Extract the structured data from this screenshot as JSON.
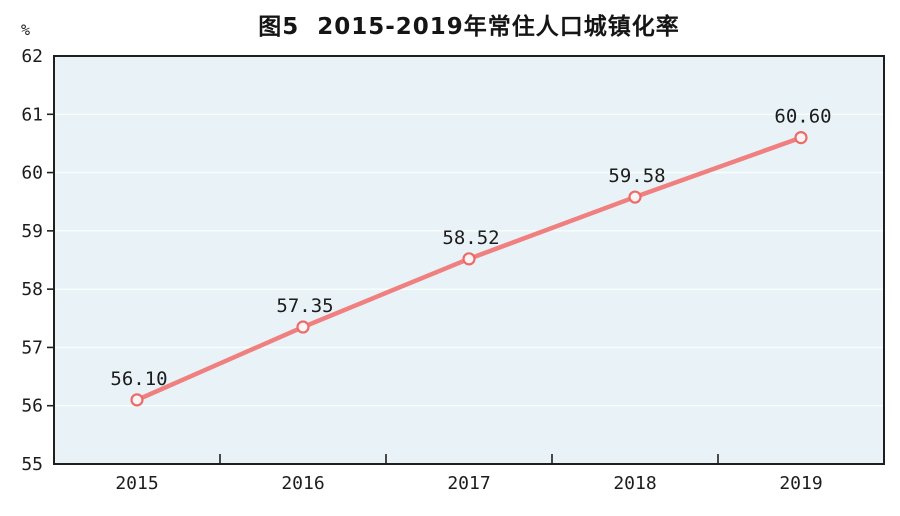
{
  "chart_data": {
    "type": "line",
    "title": "图5  2015-2019年常住人口城镇化率",
    "unit_label": "%",
    "xlabel": "",
    "ylabel": "%",
    "categories": [
      "2015",
      "2016",
      "2017",
      "2018",
      "2019"
    ],
    "series": [
      {
        "name": "常住人口城镇化率",
        "values": [
          56.1,
          57.35,
          58.52,
          59.58,
          60.6
        ]
      }
    ],
    "data_labels": [
      "56.10",
      "57.35",
      "58.52",
      "59.58",
      "60.60"
    ],
    "ylim": [
      55,
      62
    ],
    "yticks": [
      55,
      56,
      57,
      58,
      59,
      60,
      61,
      62
    ],
    "grid": "horizontal white gridlines at integer ticks",
    "legend": "none",
    "colors": {
      "line": "#f08080",
      "marker_stroke": "#ea6c6c",
      "marker_fill": "#fdf4f3",
      "plot_bg": "#e9f3f7",
      "grid": "#f9fdfd",
      "axis": "#1f1f1f",
      "text": "#1d1d1d",
      "title": "#151515"
    }
  }
}
